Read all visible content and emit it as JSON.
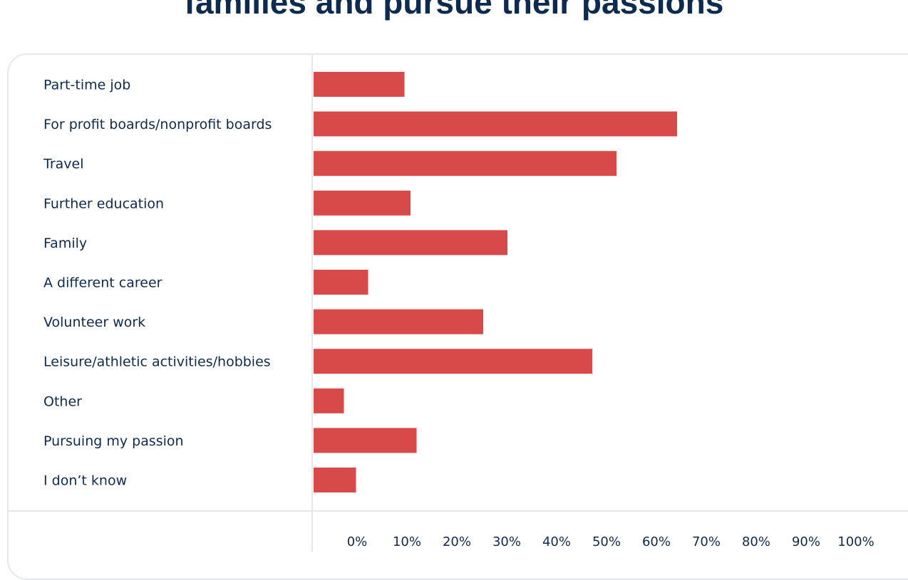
{
  "page": {
    "title": "families and pursue their passions"
  },
  "chart_data": {
    "type": "bar",
    "orientation": "horizontal",
    "categories": [
      "Part-time job",
      "For profit boards/nonprofit boards",
      "Travel",
      "Further education",
      "Family",
      "A different career",
      "Volunteer work",
      "Leisure/athletic activities/hobbies",
      "Other",
      "Pursuing my passion",
      "I don’t know"
    ],
    "values": [
      15,
      60,
      50,
      16,
      32,
      9,
      28,
      46,
      5,
      17,
      7
    ],
    "xlim": [
      0,
      100
    ],
    "x_ticks": [
      "0%",
      "10%",
      "20%",
      "30%",
      "40%",
      "50%",
      "60%",
      "70%",
      "80%",
      "90%",
      "100%"
    ],
    "xlabel": "",
    "ylabel": "",
    "grid": false,
    "bar_color": "#d84a4a",
    "text_color": "#0d2a4f"
  }
}
